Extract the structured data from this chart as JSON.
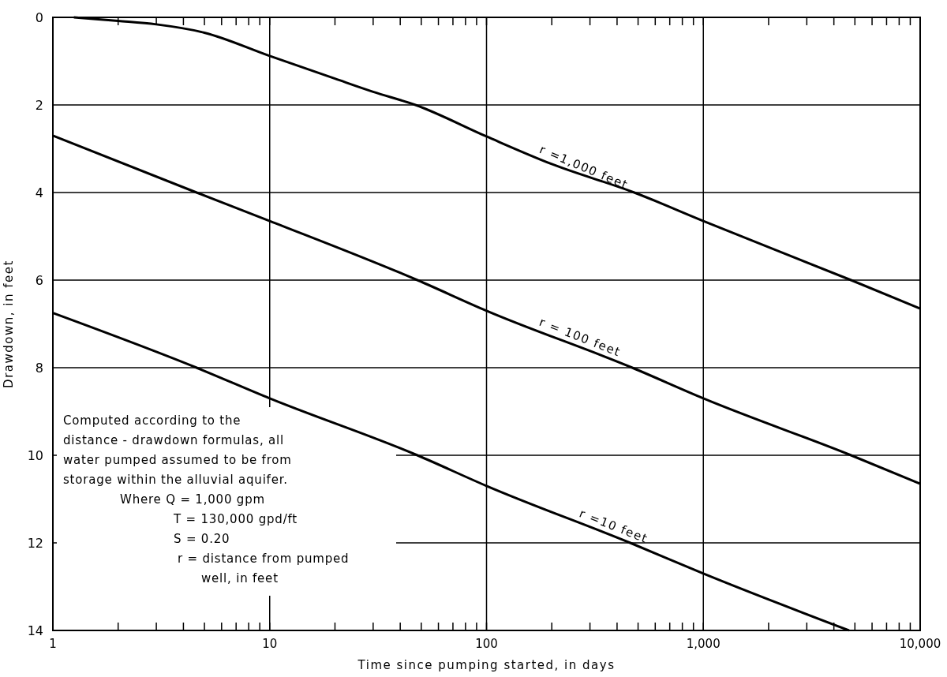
{
  "chart_data": {
    "type": "line",
    "xlabel": "Time since pumping started, in days",
    "ylabel": "Drawdown, in feet",
    "log": "x",
    "grid": true,
    "marker": "none",
    "line_style": "solid",
    "xlim": [
      1,
      10000
    ],
    "ylim": [
      14,
      0
    ],
    "xticks": [
      1,
      {
        "value": 2,
        "label": null
      },
      {
        "value": 3,
        "label": null
      },
      {
        "value": 4,
        "label": null
      },
      {
        "value": 5,
        "label": null
      },
      {
        "value": 6,
        "label": null
      },
      {
        "value": 7,
        "label": null
      },
      {
        "value": 8,
        "label": null
      },
      {
        "value": 9,
        "label": null
      },
      10,
      {
        "value": 20,
        "label": null
      },
      {
        "value": 30,
        "label": null
      },
      {
        "value": 40,
        "label": null
      },
      {
        "value": 50,
        "label": null
      },
      {
        "value": 60,
        "label": null
      },
      {
        "value": 70,
        "label": null
      },
      {
        "value": 80,
        "label": null
      },
      {
        "value": 90,
        "label": null
      },
      100,
      {
        "value": 200,
        "label": null
      },
      {
        "value": 300,
        "label": null
      },
      {
        "value": 400,
        "label": null
      },
      {
        "value": 500,
        "label": null
      },
      {
        "value": 600,
        "label": null
      },
      {
        "value": 700,
        "label": null
      },
      {
        "value": 800,
        "label": null
      },
      {
        "value": 900,
        "label": null
      },
      {
        "value": 1000,
        "label": "1,000"
      },
      {
        "value": 2000,
        "label": null
      },
      {
        "value": 3000,
        "label": null
      },
      {
        "value": 4000,
        "label": null
      },
      {
        "value": 5000,
        "label": null
      },
      {
        "value": 6000,
        "label": null
      },
      {
        "value": 7000,
        "label": null
      },
      {
        "value": 8000,
        "label": null
      },
      {
        "value": 9000,
        "label": null
      },
      {
        "value": 10000,
        "label": "10,000"
      }
    ],
    "yticks": [
      0,
      2,
      4,
      6,
      8,
      10,
      12,
      14
    ],
    "series": [
      {
        "name": "r =1,000 feet",
        "color": "#000000",
        "x": [
          1.25,
          2,
          3,
          5,
          10,
          20,
          30,
          47,
          100,
          200,
          480,
          1000,
          4800,
          10000
        ],
        "values": [
          0,
          0.08,
          0.16,
          0.35,
          0.88,
          1.4,
          1.7,
          2.0,
          2.72,
          3.35,
          4.0,
          4.65,
          6.0,
          6.65
        ]
      },
      {
        "name": "r = 100 feet",
        "color": "#000000",
        "x": [
          1,
          4.6,
          10,
          48,
          100,
          470,
          1000,
          4800,
          10000
        ],
        "values": [
          2.7,
          4.0,
          4.65,
          6.0,
          6.7,
          8.0,
          8.7,
          10.0,
          10.65
        ]
      },
      {
        "name": "r =10 feet",
        "color": "#000000",
        "x": [
          1,
          4.6,
          10,
          48,
          100,
          460,
          1000,
          4700
        ],
        "values": [
          6.75,
          8.0,
          8.7,
          10.0,
          10.7,
          12.0,
          12.7,
          14.0
        ]
      }
    ],
    "annotations": [
      "Computed according to the",
      "distance - drawdown formulas, all",
      "water pumped assumed to be from",
      "storage within the alluvial aquifer.",
      "Where Q = 1,000 gpm",
      "T = 130,000 gpd/ft",
      "S = 0.20",
      "r = distance  from pumped",
      "well, in feet"
    ]
  }
}
